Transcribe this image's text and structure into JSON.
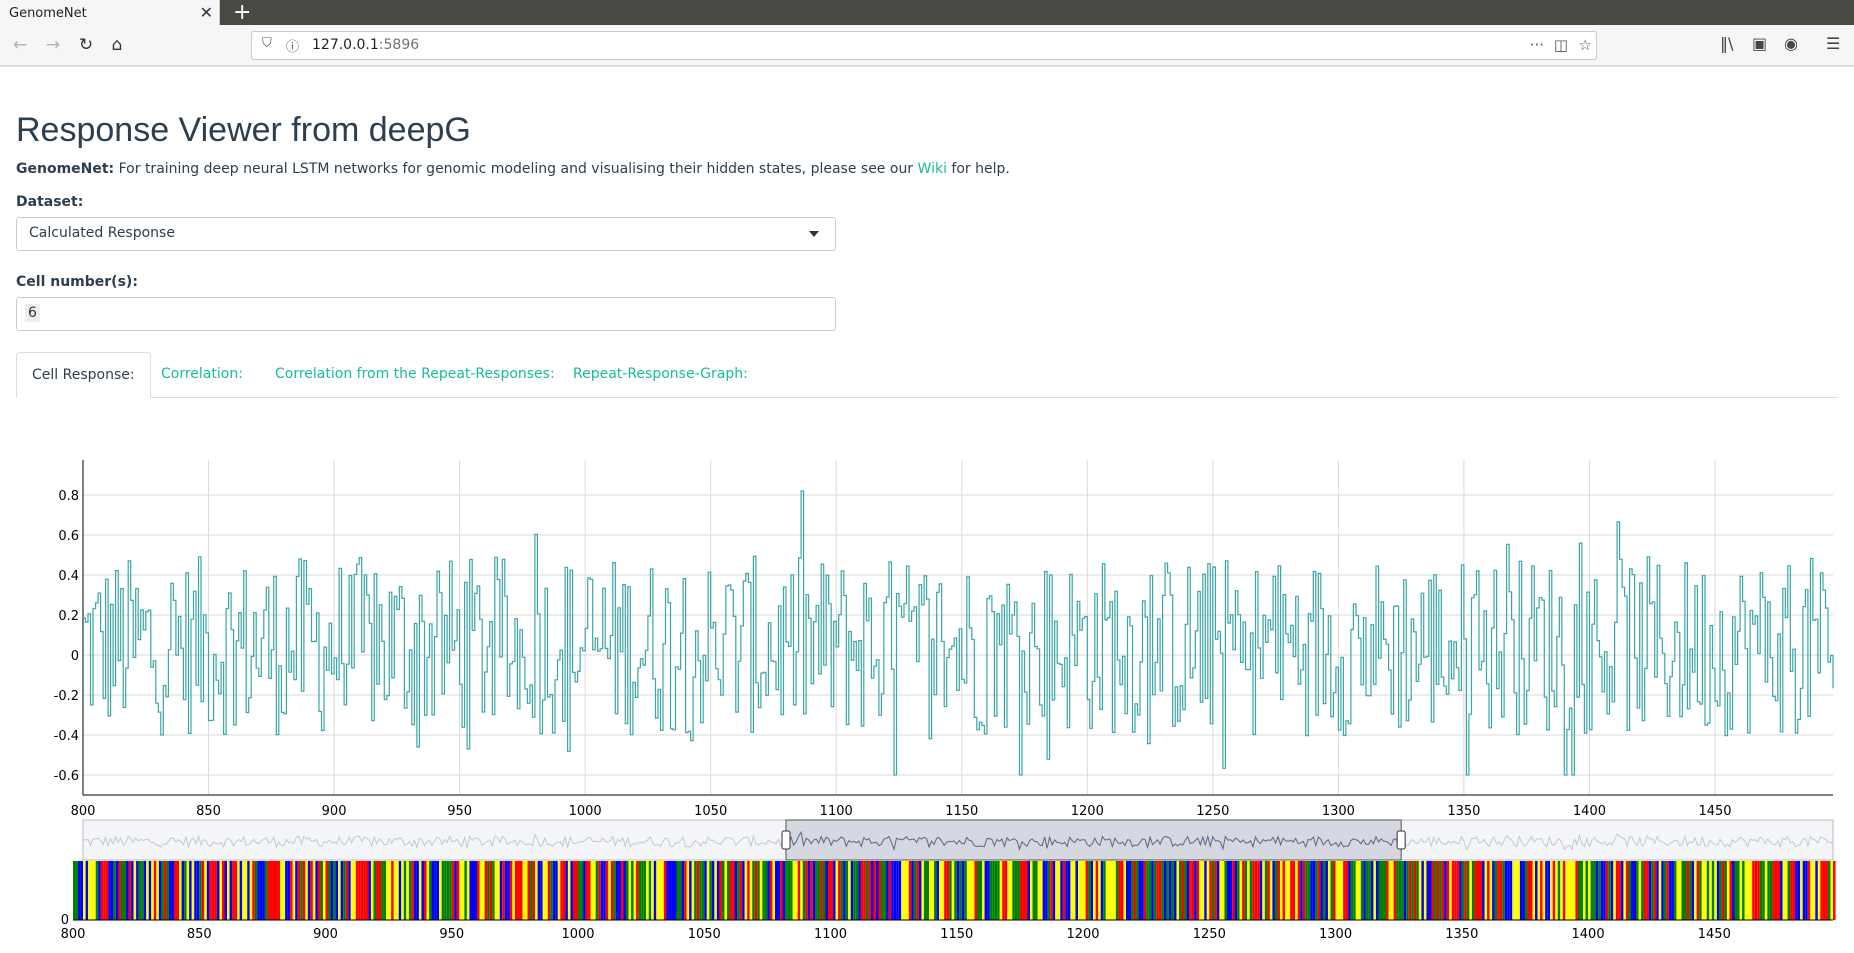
{
  "browser": {
    "tab_title": "GenomeNet",
    "url_host": "127.0.0.1",
    "url_port": ":5896"
  },
  "page": {
    "title": "Response Viewer from deepG",
    "description_bold": "GenomeNet:",
    "description_text": " For training deep neural LSTM networks for genomic modeling and visualising their hidden states, please see our ",
    "description_link": "Wiki",
    "description_end": " for help.",
    "dataset_label": "Dataset:",
    "dataset_value": "Calculated Response",
    "cell_label": "Cell number(s):",
    "cell_value": "6",
    "tabs": [
      {
        "label": "Cell Response:",
        "active": true
      },
      {
        "label": "Correlation:",
        "active": false
      },
      {
        "label": "Correlation from the Repeat-Responses:",
        "active": false
      },
      {
        "label": "Repeat-Response-Graph:",
        "active": false
      }
    ]
  },
  "colors": {
    "accent": "#18bc9c",
    "line": "#3aa6a6",
    "nuc_A": "#ff0000",
    "nuc_C": "#0000ff",
    "nuc_G": "#008000",
    "nuc_T": "#ffff00"
  },
  "chart_data": {
    "type": "line",
    "series": [
      {
        "values_note_x_start": 800
      }
    ],
    "x_range": [
      800,
      1497
    ],
    "ylim": [
      -0.7,
      0.9
    ],
    "x_ticks": [
      "800",
      "850",
      "900",
      "950",
      "1000",
      "1050",
      "1100",
      "1150",
      "1200",
      "1250",
      "1300",
      "1350",
      "1400",
      "1450"
    ],
    "y_ticks": [
      "0.8",
      "0.6",
      "0.4",
      "0.2",
      "0",
      "-0.2",
      "-0.4",
      "-0.6"
    ],
    "nuc_x_ticks": [
      "800",
      "850",
      "900",
      "950",
      "1000",
      "1050",
      "1100",
      "1150",
      "1200",
      "1250",
      "1300",
      "1350",
      "1400",
      "1450"
    ],
    "nuc_y_tick": "0",
    "range_selector": [
      1080,
      1325
    ],
    "grid": true
  }
}
